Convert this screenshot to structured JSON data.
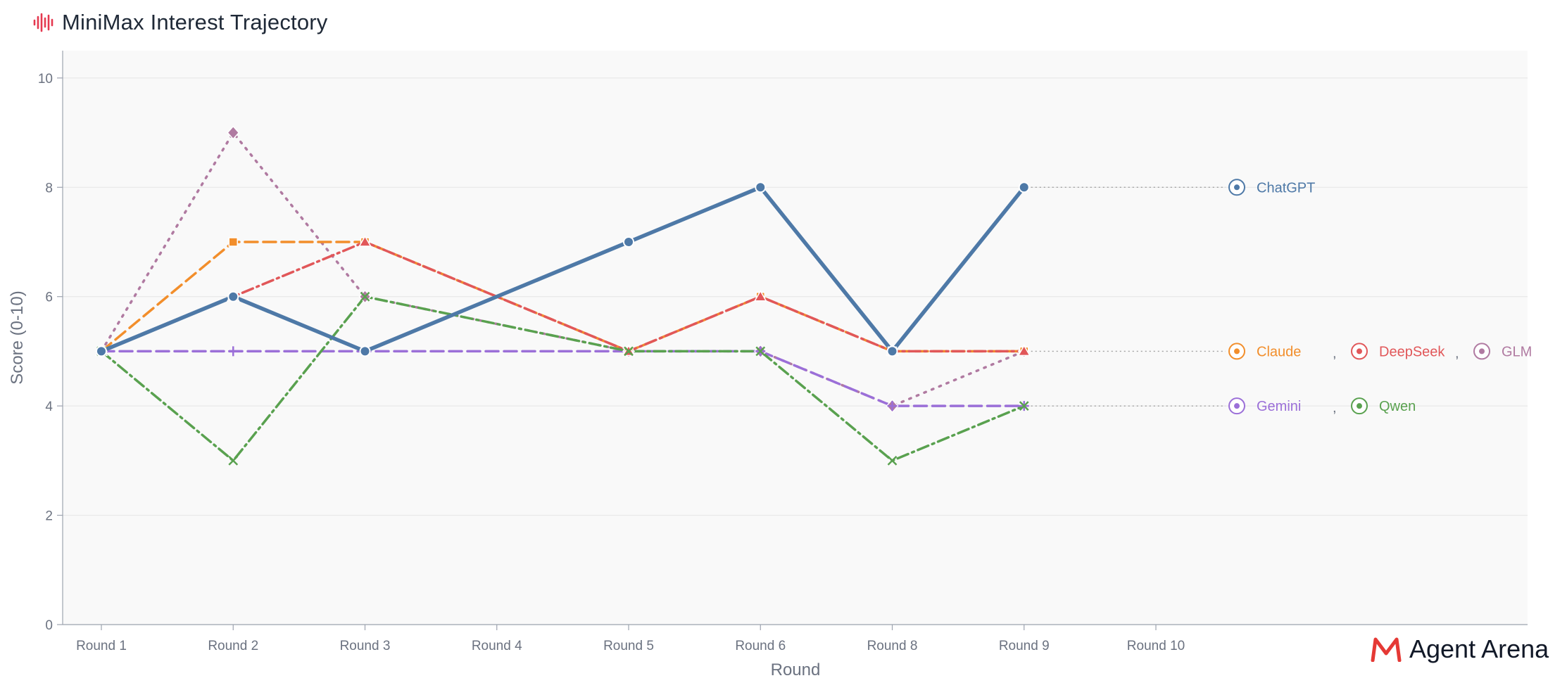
{
  "title": "MiniMax Interest Trajectory",
  "brand": "Agent Arena",
  "icons": {
    "title": "waveform-icon",
    "brand": "agent-arena-logo-icon"
  },
  "colors": {
    "background": "#f9f9f9",
    "grid": "#e5e5e5",
    "brand_red": "#e53935"
  },
  "chart_data": {
    "type": "line",
    "title": "MiniMax Interest Trajectory",
    "xlabel": "Round",
    "ylabel": "Score (0-10)",
    "categories": [
      "Round 1",
      "Round 2",
      "Round 3",
      "Round 4",
      "Round 5",
      "Round 6",
      "Round 8",
      "Round 9",
      "Round 10"
    ],
    "ylim": [
      0,
      10.5
    ],
    "yticks": [
      0,
      2,
      4,
      6,
      8,
      10
    ],
    "grid": true,
    "series": [
      {
        "name": "GLM",
        "color": "#b07aa1",
        "dash": "dotted",
        "marker": "diamond",
        "icon": "glm-icon",
        "values": [
          5,
          9,
          6,
          null,
          5,
          5,
          4,
          5,
          null
        ]
      },
      {
        "name": "Gemini",
        "color": "#9b6fd8",
        "dash": "dashed",
        "marker": "plus",
        "icon": "gemini-icon",
        "values": [
          5,
          5,
          5,
          null,
          5,
          5,
          4,
          4,
          null
        ]
      },
      {
        "name": "Claude",
        "color": "#f28e2b",
        "dash": "dashed",
        "marker": "square",
        "icon": "claude-icon",
        "values": [
          5,
          7,
          7,
          null,
          5,
          6,
          5,
          5,
          null
        ]
      },
      {
        "name": "DeepSeek",
        "color": "#e15759",
        "dash": "dashdot",
        "marker": "triangle",
        "icon": "deepseek-icon",
        "values": [
          5,
          6,
          7,
          null,
          5,
          6,
          5,
          5,
          null
        ]
      },
      {
        "name": "Qwen",
        "color": "#59a14f",
        "dash": "dashdot",
        "marker": "x",
        "icon": "qwen-icon",
        "values": [
          5,
          3,
          6,
          null,
          5,
          5,
          3,
          4,
          null
        ]
      },
      {
        "name": "ChatGPT",
        "color": "#4e79a7",
        "dash": "solid",
        "marker": "circle",
        "icon": "chatgpt-icon",
        "values": [
          5,
          6,
          5,
          null,
          7,
          8,
          5,
          8,
          null
        ]
      }
    ],
    "legend": {
      "placement": "right",
      "groups": [
        {
          "value": 8,
          "entries": [
            "ChatGPT"
          ]
        },
        {
          "value": 5,
          "entries": [
            "Claude",
            "DeepSeek",
            "GLM"
          ]
        },
        {
          "value": 4,
          "entries": [
            "Gemini",
            "Qwen"
          ]
        }
      ],
      "separator": ","
    }
  }
}
